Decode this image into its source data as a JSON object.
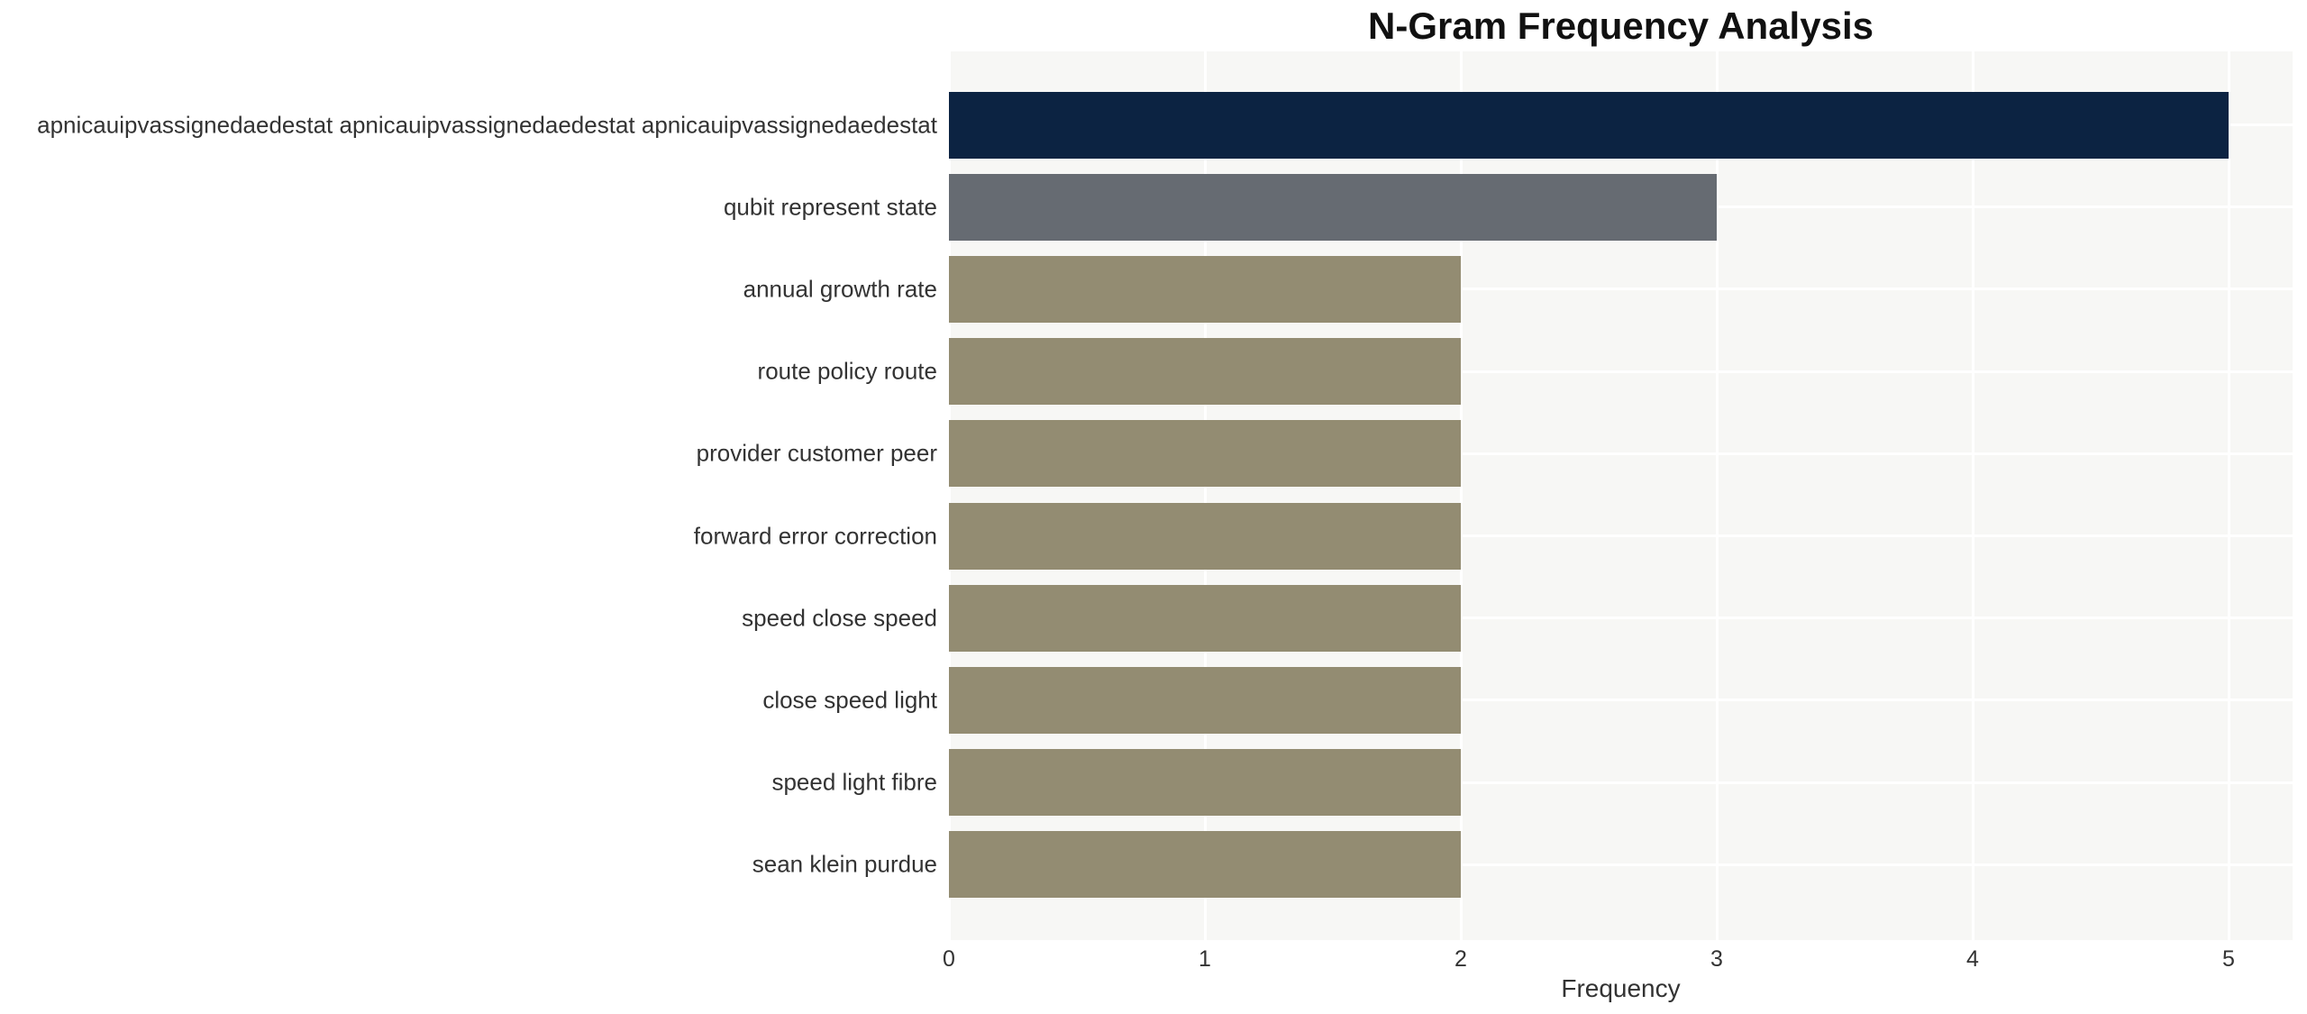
{
  "chart_data": {
    "type": "bar",
    "orientation": "horizontal",
    "title": "N-Gram Frequency Analysis",
    "xlabel": "Frequency",
    "ylabel": "",
    "categories": [
      "apnicauipvassignedaedestat apnicauipvassignedaedestat apnicauipvassignedaedestat",
      "qubit represent state",
      "annual growth rate",
      "route policy route",
      "provider customer peer",
      "forward error correction",
      "speed close speed",
      "close speed light",
      "speed light fibre",
      "sean klein purdue"
    ],
    "values": [
      5,
      3,
      2,
      2,
      2,
      2,
      2,
      2,
      2,
      2
    ],
    "bar_colors": [
      "#0c2342",
      "#666b72",
      "#938c72",
      "#938c72",
      "#938c72",
      "#938c72",
      "#938c72",
      "#938c72",
      "#938c72",
      "#938c72"
    ],
    "x_ticks": [
      "0",
      "1",
      "2",
      "3",
      "4",
      "5"
    ],
    "xlim": [
      0,
      5.25
    ],
    "grid": true,
    "legend": false,
    "panel_bg": "#f7f7f5",
    "grid_color": "#ffffff",
    "title_color": "#111111",
    "tick_label_color": "#333333"
  }
}
